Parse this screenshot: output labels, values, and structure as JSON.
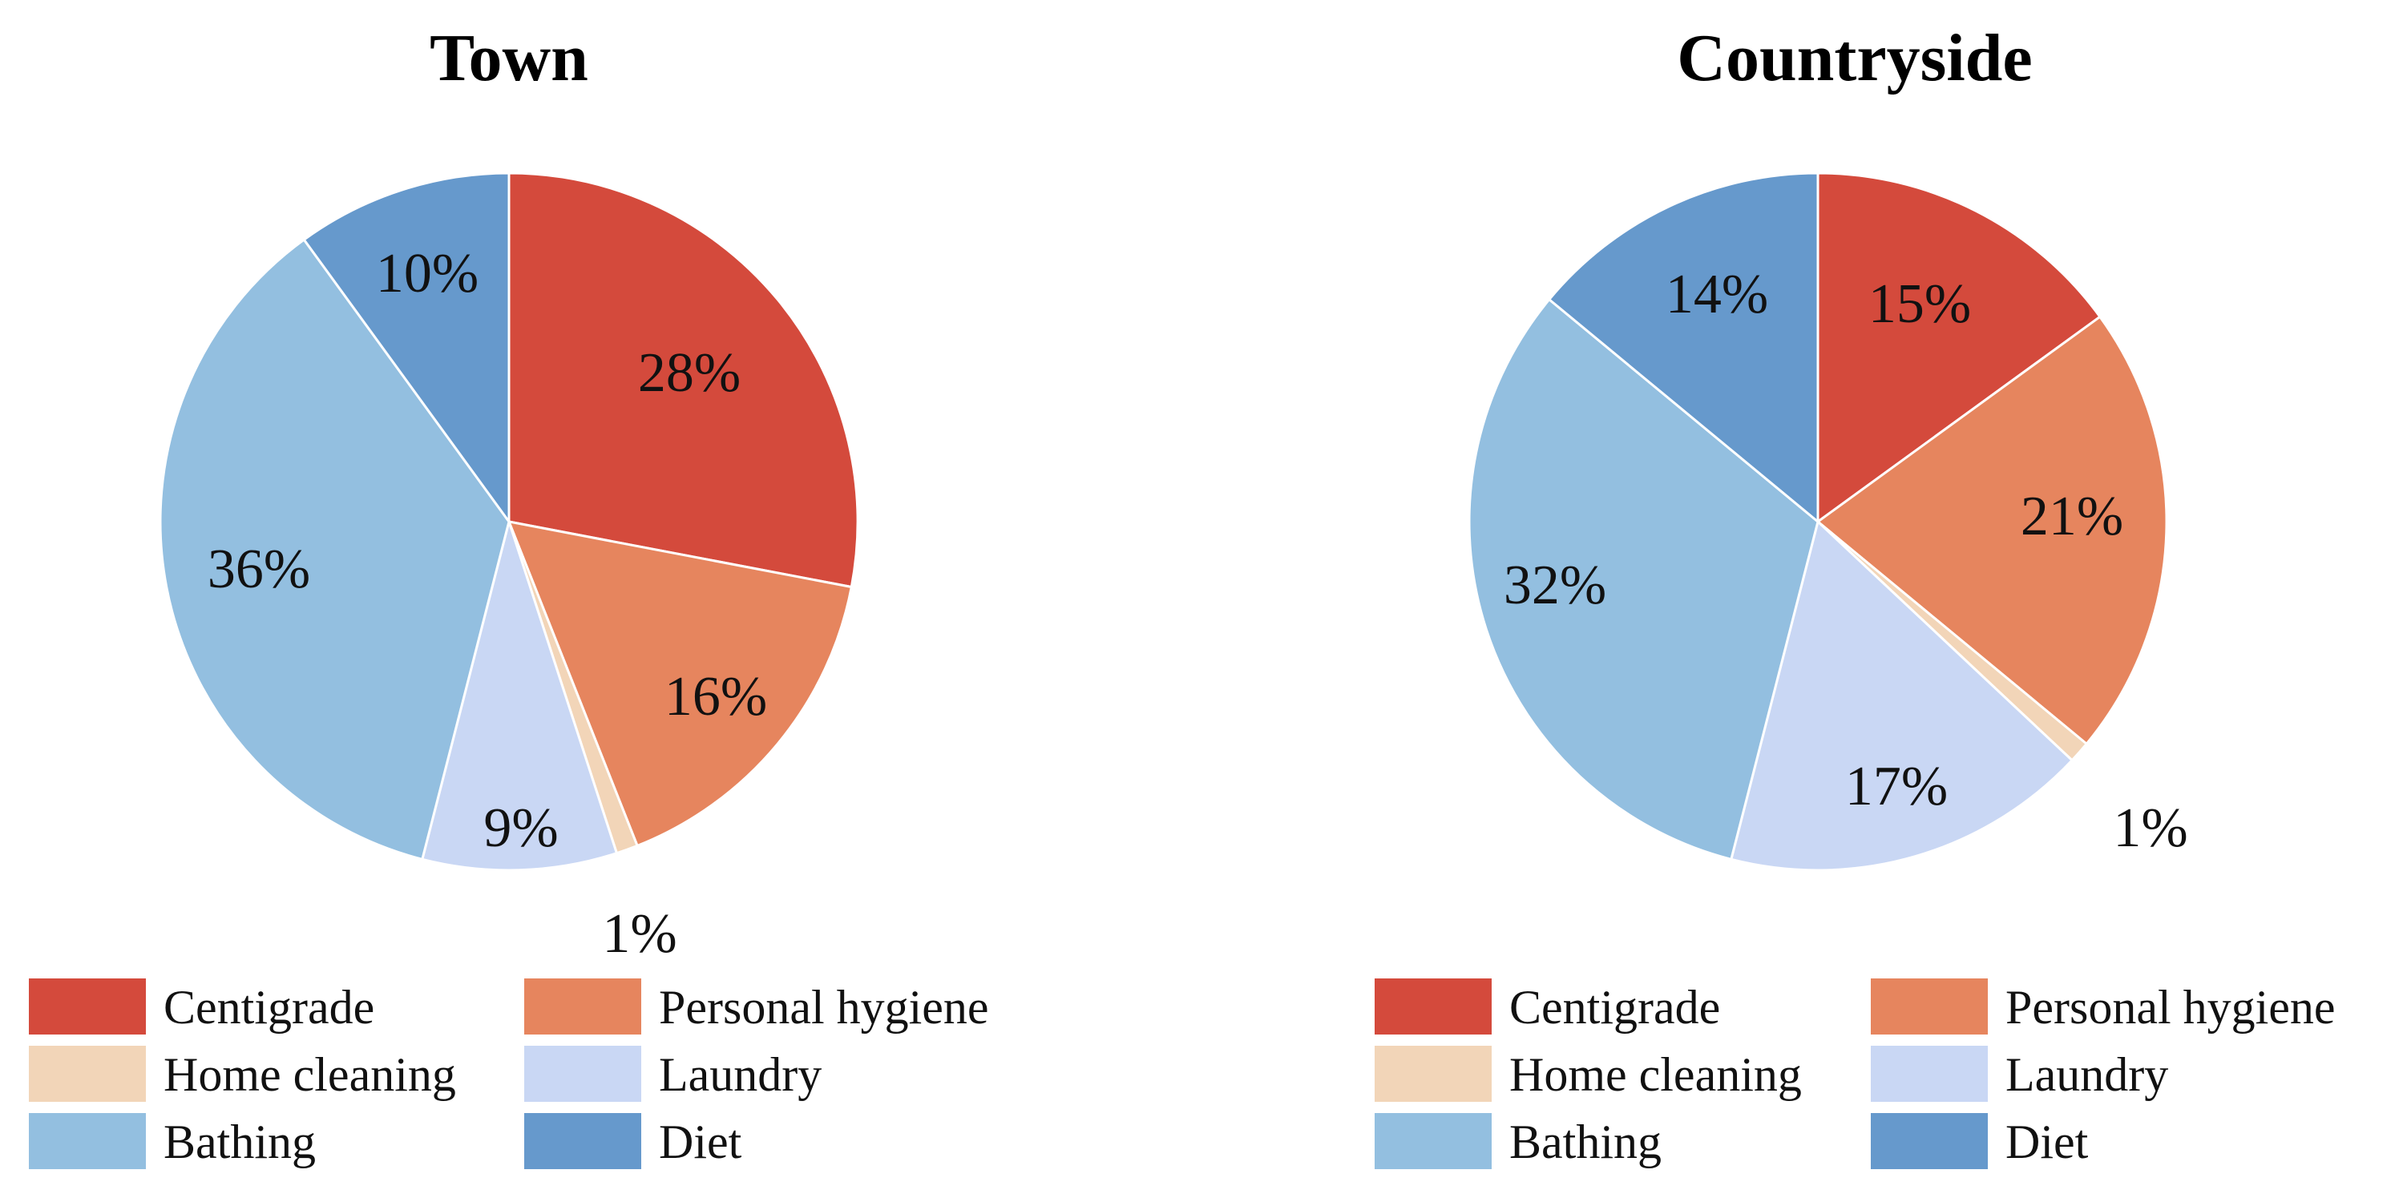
{
  "legend": [
    {
      "key": "centigrade",
      "label": "Centigrade",
      "color": "#d44a3c"
    },
    {
      "key": "personal_hygiene",
      "label": "Personal hygiene",
      "color": "#e6855e"
    },
    {
      "key": "home_cleaning",
      "label": "Home cleaning",
      "color": "#f2d5b8"
    },
    {
      "key": "laundry",
      "label": "Laundry",
      "color": "#c9d7f4"
    },
    {
      "key": "bathing",
      "label": "Bathing",
      "color": "#93bfe0"
    },
    {
      "key": "diet",
      "label": "Diet",
      "color": "#6699cc"
    }
  ],
  "chart_data": [
    {
      "type": "pie",
      "title": "Town",
      "slices": [
        {
          "key": "centigrade",
          "value": 28,
          "label": "28%"
        },
        {
          "key": "personal_hygiene",
          "value": 16,
          "label": "16%"
        },
        {
          "key": "home_cleaning",
          "value": 1,
          "label": "1%"
        },
        {
          "key": "laundry",
          "value": 9,
          "label": "9%"
        },
        {
          "key": "bathing",
          "value": 36,
          "label": "36%"
        },
        {
          "key": "diet",
          "value": 10,
          "label": "10%"
        }
      ],
      "start_angle_deg": 0,
      "direction": "clockwise",
      "legend_position": "bottom"
    },
    {
      "type": "pie",
      "title": "Countryside",
      "slices": [
        {
          "key": "centigrade",
          "value": 15,
          "label": "15%"
        },
        {
          "key": "personal_hygiene",
          "value": 21,
          "label": "21%"
        },
        {
          "key": "home_cleaning",
          "value": 1,
          "label": "1%"
        },
        {
          "key": "laundry",
          "value": 17,
          "label": "17%"
        },
        {
          "key": "bathing",
          "value": 32,
          "label": "32%"
        },
        {
          "key": "diet",
          "value": 14,
          "label": "14%"
        }
      ],
      "start_angle_deg": 0,
      "direction": "clockwise",
      "legend_position": "bottom"
    }
  ]
}
